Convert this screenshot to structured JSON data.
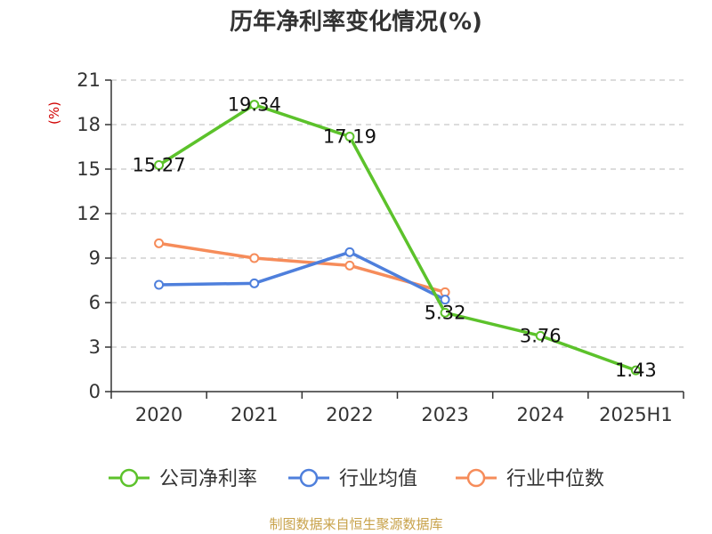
{
  "chart_data": {
    "type": "line",
    "title": "历年净利率变化情况(%)",
    "unit_label": "(%)",
    "categories": [
      "2020",
      "2021",
      "2022",
      "2023",
      "2024",
      "2025H1"
    ],
    "y_ticks": [
      "0",
      "3",
      "6",
      "9",
      "12",
      "15",
      "18",
      "21"
    ],
    "ylim": [
      0,
      21
    ],
    "grid": true,
    "legend_position": "bottom",
    "series": [
      {
        "name": "公司净利率",
        "color": "#5cc22b",
        "values": [
          15.27,
          19.34,
          17.19,
          5.32,
          3.76,
          1.43
        ],
        "labels": [
          "15.27",
          "19.34",
          "17.19",
          "5.32",
          "3.76",
          "1.43"
        ]
      },
      {
        "name": "行业均值",
        "color": "#4e7fdc",
        "values": [
          7.2,
          7.3,
          9.4,
          6.2,
          null,
          null
        ]
      },
      {
        "name": "行业中位数",
        "color": "#f68c5a",
        "values": [
          10.0,
          9.0,
          8.5,
          6.7,
          null,
          null
        ]
      }
    ],
    "source": "制图数据来自恒生聚源数据库"
  }
}
